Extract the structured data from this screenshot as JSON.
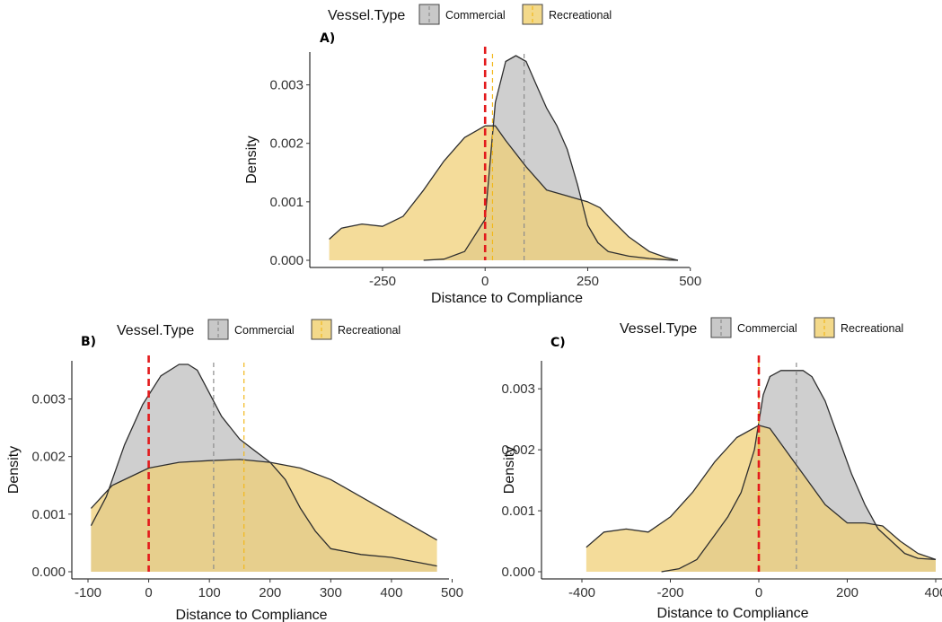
{
  "figure": {
    "legend_title": "Vessel.Type",
    "legend_items": [
      {
        "label": "Commercial",
        "fill": "#c8c8c8"
      },
      {
        "label": "Recreational",
        "fill": "#f3d98a"
      }
    ]
  },
  "colors": {
    "commercial_fill": "#bdbdbd",
    "recreational_fill": "#f0cf73",
    "curve_line": "#2e2e2e",
    "reference_line": "#e31a1c",
    "commercial_mean_line": "#8c8c8c",
    "recreational_mean_line": "#f2b81c"
  },
  "chart_data": [
    {
      "panel": "A)",
      "type": "area",
      "xlabel": "Distance to Compliance",
      "ylabel": "Density",
      "xlim": [
        -390,
        470
      ],
      "ylim": [
        0,
        0.0035
      ],
      "xticks": [
        -250,
        0,
        250,
        500
      ],
      "xtick_labels": [
        "-250",
        "0",
        "250",
        "500"
      ],
      "yticks": [
        0,
        0.001,
        0.002,
        0.003
      ],
      "ytick_labels": [
        "0.000",
        "0.001",
        "0.002",
        "0.003"
      ],
      "grid": false,
      "legend_position": "top",
      "reference_line_x": 0,
      "series": [
        {
          "name": "Commercial",
          "x": [
            -150,
            -100,
            -50,
            0,
            25,
            50,
            75,
            100,
            125,
            150,
            175,
            200,
            225,
            250,
            275,
            300,
            350,
            400,
            450,
            470
          ],
          "values": [
            0,
            2e-05,
            0.00015,
            0.0007,
            0.0027,
            0.0034,
            0.0035,
            0.0034,
            0.003,
            0.0026,
            0.0023,
            0.0019,
            0.0013,
            0.0006,
            0.0003,
            0.00015,
            7e-05,
            3e-05,
            5e-06,
            0
          ],
          "mean": 95
        },
        {
          "name": "Recreational",
          "x": [
            -380,
            -350,
            -300,
            -250,
            -200,
            -150,
            -100,
            -50,
            0,
            25,
            50,
            100,
            150,
            200,
            250,
            280,
            300,
            350,
            400,
            440,
            470
          ],
          "values": [
            0.00036,
            0.00055,
            0.00062,
            0.00058,
            0.00075,
            0.0012,
            0.0017,
            0.0021,
            0.0023,
            0.0023,
            0.00205,
            0.0016,
            0.0012,
            0.0011,
            0.001,
            0.0009,
            0.00075,
            0.0004,
            0.00015,
            5e-05,
            0
          ],
          "mean": 18
        }
      ]
    },
    {
      "panel": "B)",
      "type": "area",
      "xlabel": "Distance to Compliance",
      "ylabel": "Density",
      "xlim": [
        -100,
        480
      ],
      "ylim": [
        0,
        0.0036
      ],
      "xticks": [
        -100,
        0,
        100,
        200,
        300,
        400,
        500
      ],
      "xtick_labels": [
        "-100",
        "0",
        "100",
        "200",
        "300",
        "400",
        "500"
      ],
      "yticks": [
        0,
        0.001,
        0.002,
        0.003
      ],
      "ytick_labels": [
        "0.000",
        "0.001",
        "0.002",
        "0.003"
      ],
      "grid": false,
      "legend_position": "top",
      "reference_line_x": 0,
      "series": [
        {
          "name": "Commercial",
          "x": [
            -95,
            -70,
            -40,
            -10,
            20,
            50,
            65,
            80,
            100,
            120,
            150,
            175,
            200,
            225,
            250,
            275,
            300,
            350,
            400,
            450,
            475
          ],
          "values": [
            0.0008,
            0.0013,
            0.0022,
            0.0029,
            0.0034,
            0.0036,
            0.0036,
            0.0035,
            0.0031,
            0.0027,
            0.0023,
            0.0021,
            0.0019,
            0.0016,
            0.0011,
            0.0007,
            0.0004,
            0.0003,
            0.00025,
            0.00015,
            0.0001
          ],
          "mean": 107
        },
        {
          "name": "Recreational",
          "x": [
            -95,
            -60,
            0,
            50,
            100,
            150,
            200,
            250,
            300,
            350,
            400,
            450,
            475
          ],
          "values": [
            0.0011,
            0.0015,
            0.0018,
            0.0019,
            0.00193,
            0.00195,
            0.0019,
            0.0018,
            0.0016,
            0.0013,
            0.001,
            0.0007,
            0.00055
          ],
          "mean": 157
        }
      ]
    },
    {
      "panel": "C)",
      "type": "area",
      "xlabel": "Distance to Compliance",
      "ylabel": "Density",
      "xlim": [
        -400,
        400
      ],
      "ylim": [
        0,
        0.0034
      ],
      "xticks": [
        -400,
        -200,
        0,
        200,
        400
      ],
      "xtick_labels": [
        "-400",
        "-200",
        "0",
        "200",
        "400"
      ],
      "yticks": [
        0,
        0.001,
        0.002,
        0.003
      ],
      "ytick_labels": [
        "0.000",
        "0.001",
        "0.002",
        "0.003"
      ],
      "grid": false,
      "legend_position": "top",
      "reference_line_x": 0,
      "series": [
        {
          "name": "Commercial",
          "x": [
            -220,
            -180,
            -140,
            -100,
            -70,
            -40,
            -10,
            10,
            25,
            50,
            80,
            100,
            120,
            150,
            180,
            210,
            240,
            270,
            300,
            330,
            360,
            400
          ],
          "values": [
            0,
            5e-05,
            0.0002,
            0.0006,
            0.0009,
            0.0013,
            0.002,
            0.0029,
            0.0032,
            0.0033,
            0.0033,
            0.0033,
            0.0032,
            0.0028,
            0.0022,
            0.0016,
            0.0011,
            0.0007,
            0.0005,
            0.0003,
            0.00022,
            0.0002
          ],
          "mean": 85
        },
        {
          "name": "Recreational",
          "x": [
            -390,
            -350,
            -300,
            -250,
            -200,
            -150,
            -100,
            -50,
            0,
            25,
            50,
            100,
            150,
            200,
            240,
            280,
            320,
            360,
            400
          ],
          "values": [
            0.0004,
            0.00065,
            0.0007,
            0.00065,
            0.0009,
            0.0013,
            0.0018,
            0.0022,
            0.0024,
            0.00235,
            0.0021,
            0.0016,
            0.0011,
            0.0008,
            0.0008,
            0.00075,
            0.0005,
            0.0003,
            0.0002
          ],
          "mean": 0
        }
      ]
    }
  ]
}
